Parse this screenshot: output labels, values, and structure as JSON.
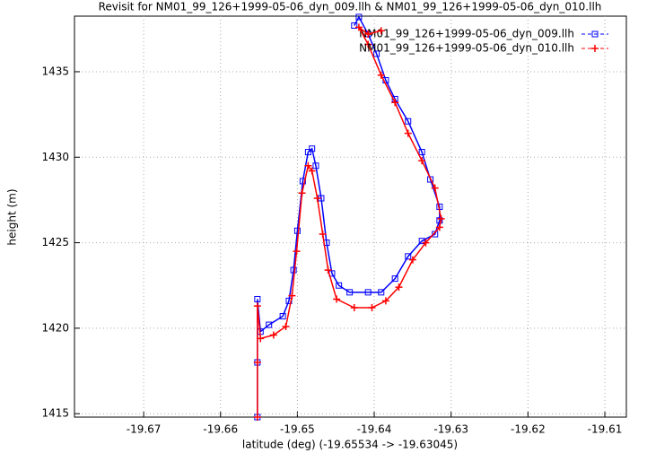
{
  "chart_data": {
    "type": "line",
    "title": "Revisit for NM01_99_126+1999-05-06_dyn_009.llh & NM01_99_126+1999-05-06_dyn_010.llh",
    "x_label": "latitude (deg) (-19.65534 -> -19.63045)",
    "y_label": "height (m)",
    "xlim": [
      -19.679,
      -19.6072
    ],
    "ylim": [
      1414.8,
      1438.25
    ],
    "xticks": [
      -19.67,
      -19.66,
      -19.65,
      -19.64,
      -19.63,
      -19.62,
      -19.61
    ],
    "yticks": [
      1415,
      1420,
      1425,
      1430,
      1435
    ],
    "grid": true,
    "legend": "top-right",
    "series": [
      {
        "name": "NM01_99_126+1999-05-06_dyn_009.llh",
        "color": "#0000ff",
        "marker": "square",
        "x": [
          -19.6552,
          -19.6552,
          -19.6552,
          -19.6548,
          -19.6537,
          -19.6519,
          -19.6511,
          -19.6505,
          -19.65,
          -19.6493,
          -19.6486,
          -19.6481,
          -19.6476,
          -19.6469,
          -19.6462,
          -19.6455,
          -19.6446,
          -19.6432,
          -19.6408,
          -19.6391,
          -19.6373,
          -19.6356,
          -19.6338,
          -19.6321,
          -19.6315,
          -19.6315,
          -19.6327,
          -19.6338,
          -19.6356,
          -19.6373,
          -19.6385,
          -19.6397,
          -19.6408,
          -19.642,
          -19.6426
        ],
        "values": [
          1414.8,
          1418,
          1421.7,
          1419.8,
          1420.2,
          1420.7,
          1421.6,
          1423.4,
          1425.7,
          1428.6,
          1430.3,
          1430.5,
          1429.5,
          1427.6,
          1425,
          1423.2,
          1422.5,
          1422.1,
          1422.1,
          1422.1,
          1422.9,
          1424.2,
          1425.1,
          1425.5,
          1426.3,
          1427.1,
          1428.7,
          1430.3,
          1432.1,
          1433.4,
          1434.5,
          1436.05,
          1437.2,
          1438.2,
          1437.7
        ]
      },
      {
        "name": "NM01_99_126+1999-05-06_dyn_010.llh",
        "color": "#ff0000",
        "marker": "plus",
        "x": [
          -19.6552,
          -19.6552,
          -19.6552,
          -19.6548,
          -19.6531,
          -19.6515,
          -19.6507,
          -19.6501,
          -19.6494,
          -19.6486,
          -19.6481,
          -19.6474,
          -19.6467,
          -19.646,
          -19.6449,
          -19.6426,
          -19.6403,
          -19.6385,
          -19.6368,
          -19.635,
          -19.6333,
          -19.6315,
          -19.6313,
          -19.6321,
          -19.6338,
          -19.6356,
          -19.6373,
          -19.6391,
          -19.6408,
          -19.642,
          -19.6408,
          -19.6391
        ],
        "values": [
          1414.8,
          1418,
          1421.3,
          1419.4,
          1419.6,
          1420.1,
          1421.9,
          1424.5,
          1427.9,
          1429.5,
          1429.2,
          1427.6,
          1425.5,
          1423.4,
          1421.7,
          1421.2,
          1421.2,
          1421.6,
          1422.4,
          1424,
          1425,
          1425.9,
          1426.4,
          1428.2,
          1429.8,
          1431.4,
          1433.2,
          1434.8,
          1436.6,
          1437.6,
          1437.2,
          1437.4
        ]
      }
    ]
  }
}
